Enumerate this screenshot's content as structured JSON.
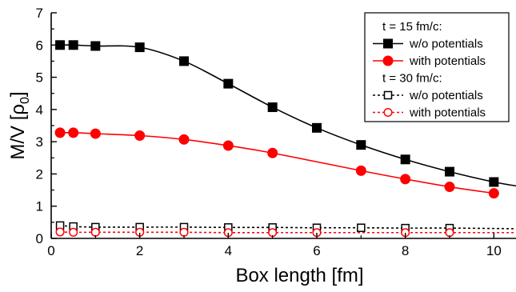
{
  "chart_data": {
    "type": "line",
    "xlabel": "Box length [fm]",
    "ylabel_main": "M/V [ρ",
    "ylabel_sub": "0",
    "ylabel_close": "]",
    "xlim": [
      0,
      10.5
    ],
    "ylim": [
      0,
      7
    ],
    "xticks": [
      0,
      2,
      4,
      6,
      8,
      10
    ],
    "yticks": [
      0,
      1,
      2,
      3,
      4,
      5,
      6,
      7
    ],
    "legend_position": "top-right",
    "legend_headers": [
      "t = 15 fm/c:",
      "t = 30 fm/c:"
    ],
    "series": [
      {
        "name": "w/o potentials",
        "group": "t = 15 fm/c:",
        "color": "#000000",
        "marker": "square",
        "filled": true,
        "dashed": false,
        "x": [
          0.2,
          0.5,
          1,
          2,
          3,
          4,
          5,
          6,
          7,
          8,
          9,
          10
        ],
        "y": [
          6.0,
          6.0,
          5.97,
          5.93,
          5.5,
          4.8,
          4.07,
          3.43,
          2.9,
          2.45,
          2.07,
          1.75
        ],
        "curve_extends_to": 10.5,
        "curve_end_y": 1.63
      },
      {
        "name": "with potentials",
        "group": "t = 15 fm/c:",
        "color": "#ff0000",
        "marker": "circle",
        "filled": true,
        "dashed": false,
        "x": [
          0.2,
          0.5,
          1,
          2,
          3,
          4,
          5,
          6,
          7,
          8,
          9,
          10
        ],
        "y": [
          3.28,
          3.28,
          3.25,
          3.19,
          3.07,
          2.88,
          2.65,
          null,
          2.1,
          1.84,
          1.6,
          1.4
        ]
      },
      {
        "name": "w/o potentials",
        "group": "t = 30 fm/c:",
        "color": "#000000",
        "marker": "square",
        "filled": false,
        "dashed": true,
        "x": [
          0.2,
          0.5,
          1,
          2,
          3,
          4,
          5,
          6,
          7,
          8,
          9
        ],
        "y": [
          0.4,
          0.37,
          0.35,
          0.35,
          0.35,
          0.34,
          0.34,
          0.33,
          0.33,
          0.32,
          0.32
        ],
        "curve_extends_to": 10.5,
        "curve_end_y": 0.3
      },
      {
        "name": "with potentials",
        "group": "t = 30 fm/c:",
        "color": "#ff0000",
        "marker": "circle",
        "filled": false,
        "dashed": true,
        "x": [
          0.2,
          0.5,
          1,
          2,
          3,
          4,
          5,
          6,
          8,
          9
        ],
        "y": [
          0.2,
          0.19,
          0.19,
          0.19,
          0.19,
          0.18,
          0.18,
          0.18,
          0.18,
          0.18
        ],
        "curve_extends_to": 10.5,
        "curve_end_y": 0.18
      }
    ]
  }
}
